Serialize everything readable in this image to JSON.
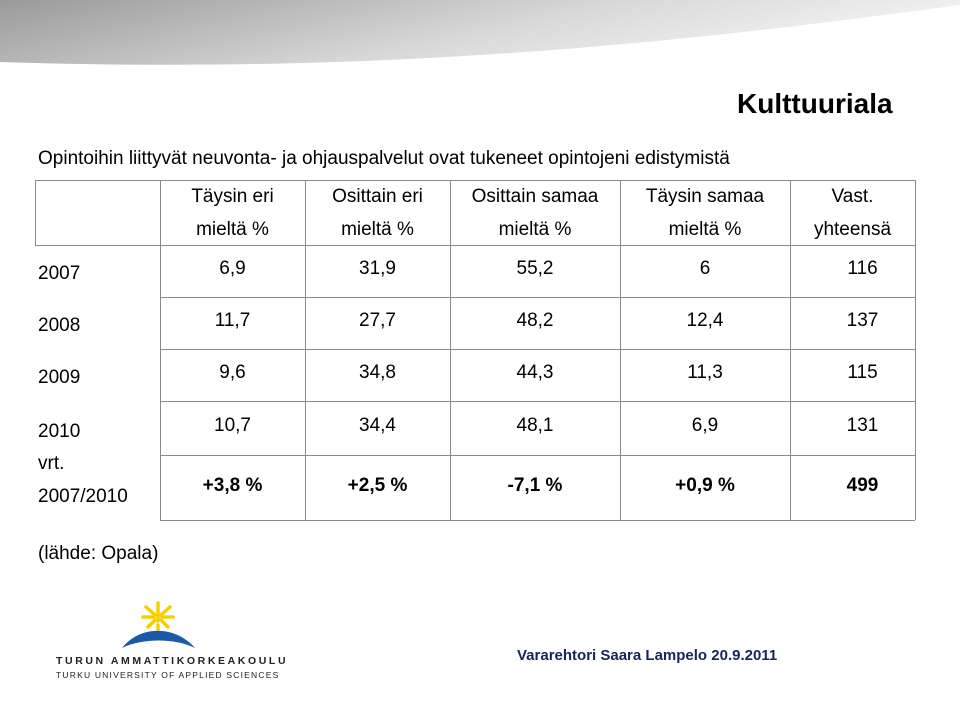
{
  "title": "Kulttuuriala",
  "table": {
    "caption": "Opintoihin liittyvät neuvonta- ja ohjauspalvelut ovat tukeneet opintojeni edistymistä",
    "header": [
      [
        "Täysin eri",
        "mieltä %"
      ],
      [
        "Osittain eri",
        "mieltä %"
      ],
      [
        "Osittain samaa",
        "mieltä %"
      ],
      [
        "Täysin samaa",
        "mieltä %"
      ],
      [
        "Vast.",
        "yhteensä"
      ]
    ],
    "rows": [
      {
        "label": [
          "2007"
        ],
        "cells": [
          "6,9",
          "31,9",
          "55,2",
          "6",
          "116"
        ]
      },
      {
        "label": [
          "2008"
        ],
        "cells": [
          "11,7",
          "27,7",
          "48,2",
          "12,4",
          "137"
        ]
      },
      {
        "label": [
          "2009"
        ],
        "cells": [
          "9,6",
          "34,8",
          "44,3",
          "11,3",
          "115"
        ]
      },
      {
        "label": [
          "2010"
        ],
        "cells": [
          "10,7",
          "34,4",
          "48,1",
          "6,9",
          "131"
        ]
      },
      {
        "label": [
          "vrt.",
          "2007/2010"
        ],
        "cells": [
          "+3,8 %",
          "+2,5 %",
          "-7,1 %",
          "+0,9 %",
          "499"
        ]
      }
    ]
  },
  "source": "(lähde: Opala)",
  "logo": {
    "name": "TURUN AMMATTIKORKEAKOULU",
    "subtitle": "TURKU UNIVERSITY OF APPLIED SCIENCES"
  },
  "footer": "Vararehtori Saara Lampelo 20.9.2011"
}
